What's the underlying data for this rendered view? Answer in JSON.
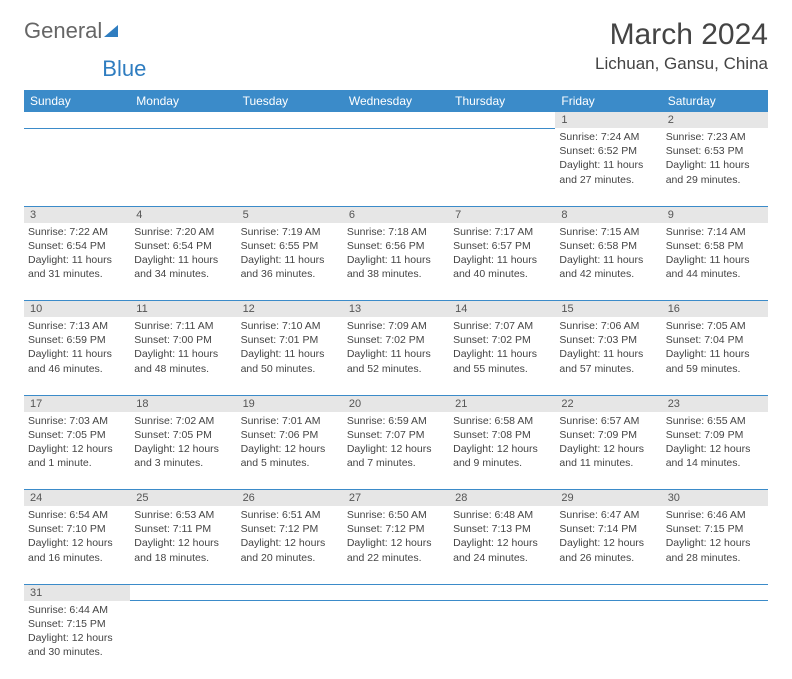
{
  "logo": {
    "general": "General",
    "blue": "Blue"
  },
  "title": "March 2024",
  "location": "Lichuan, Gansu, China",
  "colors": {
    "header_bg": "#3b8bc9",
    "header_text": "#ffffff",
    "daynum_bg": "#e6e6e6",
    "border": "#3b8bc9",
    "text": "#444444",
    "logo_gray": "#666666",
    "logo_blue": "#2f7dc0",
    "page_bg": "#ffffff"
  },
  "weekdays": [
    "Sunday",
    "Monday",
    "Tuesday",
    "Wednesday",
    "Thursday",
    "Friday",
    "Saturday"
  ],
  "weeks": [
    {
      "nums": [
        "",
        "",
        "",
        "",
        "",
        "1",
        "2"
      ],
      "cells": [
        null,
        null,
        null,
        null,
        null,
        {
          "sunrise": "Sunrise: 7:24 AM",
          "sunset": "Sunset: 6:52 PM",
          "daylight": "Daylight: 11 hours and 27 minutes."
        },
        {
          "sunrise": "Sunrise: 7:23 AM",
          "sunset": "Sunset: 6:53 PM",
          "daylight": "Daylight: 11 hours and 29 minutes."
        }
      ]
    },
    {
      "nums": [
        "3",
        "4",
        "5",
        "6",
        "7",
        "8",
        "9"
      ],
      "cells": [
        {
          "sunrise": "Sunrise: 7:22 AM",
          "sunset": "Sunset: 6:54 PM",
          "daylight": "Daylight: 11 hours and 31 minutes."
        },
        {
          "sunrise": "Sunrise: 7:20 AM",
          "sunset": "Sunset: 6:54 PM",
          "daylight": "Daylight: 11 hours and 34 minutes."
        },
        {
          "sunrise": "Sunrise: 7:19 AM",
          "sunset": "Sunset: 6:55 PM",
          "daylight": "Daylight: 11 hours and 36 minutes."
        },
        {
          "sunrise": "Sunrise: 7:18 AM",
          "sunset": "Sunset: 6:56 PM",
          "daylight": "Daylight: 11 hours and 38 minutes."
        },
        {
          "sunrise": "Sunrise: 7:17 AM",
          "sunset": "Sunset: 6:57 PM",
          "daylight": "Daylight: 11 hours and 40 minutes."
        },
        {
          "sunrise": "Sunrise: 7:15 AM",
          "sunset": "Sunset: 6:58 PM",
          "daylight": "Daylight: 11 hours and 42 minutes."
        },
        {
          "sunrise": "Sunrise: 7:14 AM",
          "sunset": "Sunset: 6:58 PM",
          "daylight": "Daylight: 11 hours and 44 minutes."
        }
      ]
    },
    {
      "nums": [
        "10",
        "11",
        "12",
        "13",
        "14",
        "15",
        "16"
      ],
      "cells": [
        {
          "sunrise": "Sunrise: 7:13 AM",
          "sunset": "Sunset: 6:59 PM",
          "daylight": "Daylight: 11 hours and 46 minutes."
        },
        {
          "sunrise": "Sunrise: 7:11 AM",
          "sunset": "Sunset: 7:00 PM",
          "daylight": "Daylight: 11 hours and 48 minutes."
        },
        {
          "sunrise": "Sunrise: 7:10 AM",
          "sunset": "Sunset: 7:01 PM",
          "daylight": "Daylight: 11 hours and 50 minutes."
        },
        {
          "sunrise": "Sunrise: 7:09 AM",
          "sunset": "Sunset: 7:02 PM",
          "daylight": "Daylight: 11 hours and 52 minutes."
        },
        {
          "sunrise": "Sunrise: 7:07 AM",
          "sunset": "Sunset: 7:02 PM",
          "daylight": "Daylight: 11 hours and 55 minutes."
        },
        {
          "sunrise": "Sunrise: 7:06 AM",
          "sunset": "Sunset: 7:03 PM",
          "daylight": "Daylight: 11 hours and 57 minutes."
        },
        {
          "sunrise": "Sunrise: 7:05 AM",
          "sunset": "Sunset: 7:04 PM",
          "daylight": "Daylight: 11 hours and 59 minutes."
        }
      ]
    },
    {
      "nums": [
        "17",
        "18",
        "19",
        "20",
        "21",
        "22",
        "23"
      ],
      "cells": [
        {
          "sunrise": "Sunrise: 7:03 AM",
          "sunset": "Sunset: 7:05 PM",
          "daylight": "Daylight: 12 hours and 1 minute."
        },
        {
          "sunrise": "Sunrise: 7:02 AM",
          "sunset": "Sunset: 7:05 PM",
          "daylight": "Daylight: 12 hours and 3 minutes."
        },
        {
          "sunrise": "Sunrise: 7:01 AM",
          "sunset": "Sunset: 7:06 PM",
          "daylight": "Daylight: 12 hours and 5 minutes."
        },
        {
          "sunrise": "Sunrise: 6:59 AM",
          "sunset": "Sunset: 7:07 PM",
          "daylight": "Daylight: 12 hours and 7 minutes."
        },
        {
          "sunrise": "Sunrise: 6:58 AM",
          "sunset": "Sunset: 7:08 PM",
          "daylight": "Daylight: 12 hours and 9 minutes."
        },
        {
          "sunrise": "Sunrise: 6:57 AM",
          "sunset": "Sunset: 7:09 PM",
          "daylight": "Daylight: 12 hours and 11 minutes."
        },
        {
          "sunrise": "Sunrise: 6:55 AM",
          "sunset": "Sunset: 7:09 PM",
          "daylight": "Daylight: 12 hours and 14 minutes."
        }
      ]
    },
    {
      "nums": [
        "24",
        "25",
        "26",
        "27",
        "28",
        "29",
        "30"
      ],
      "cells": [
        {
          "sunrise": "Sunrise: 6:54 AM",
          "sunset": "Sunset: 7:10 PM",
          "daylight": "Daylight: 12 hours and 16 minutes."
        },
        {
          "sunrise": "Sunrise: 6:53 AM",
          "sunset": "Sunset: 7:11 PM",
          "daylight": "Daylight: 12 hours and 18 minutes."
        },
        {
          "sunrise": "Sunrise: 6:51 AM",
          "sunset": "Sunset: 7:12 PM",
          "daylight": "Daylight: 12 hours and 20 minutes."
        },
        {
          "sunrise": "Sunrise: 6:50 AM",
          "sunset": "Sunset: 7:12 PM",
          "daylight": "Daylight: 12 hours and 22 minutes."
        },
        {
          "sunrise": "Sunrise: 6:48 AM",
          "sunset": "Sunset: 7:13 PM",
          "daylight": "Daylight: 12 hours and 24 minutes."
        },
        {
          "sunrise": "Sunrise: 6:47 AM",
          "sunset": "Sunset: 7:14 PM",
          "daylight": "Daylight: 12 hours and 26 minutes."
        },
        {
          "sunrise": "Sunrise: 6:46 AM",
          "sunset": "Sunset: 7:15 PM",
          "daylight": "Daylight: 12 hours and 28 minutes."
        }
      ]
    },
    {
      "nums": [
        "31",
        "",
        "",
        "",
        "",
        "",
        ""
      ],
      "cells": [
        {
          "sunrise": "Sunrise: 6:44 AM",
          "sunset": "Sunset: 7:15 PM",
          "daylight": "Daylight: 12 hours and 30 minutes."
        },
        null,
        null,
        null,
        null,
        null,
        null
      ]
    }
  ]
}
